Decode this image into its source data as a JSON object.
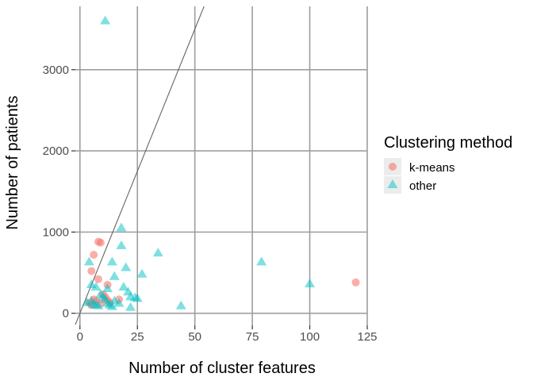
{
  "chart_data": {
    "type": "scatter",
    "title": "",
    "xlabel": "Number of cluster features",
    "ylabel": "Number of patients",
    "xlim": [
      -2,
      125
    ],
    "ylim": [
      -150,
      3780
    ],
    "x_ticks": [
      0,
      25,
      50,
      75,
      100,
      125
    ],
    "y_ticks": [
      0,
      1000,
      2000,
      3000
    ],
    "x_tick_labels": [
      "0",
      "25",
      "50",
      "75",
      "100",
      "125"
    ],
    "y_tick_labels": [
      "0",
      "1000",
      "2000",
      "3000"
    ],
    "grid": true,
    "reference_line": {
      "slope": 70,
      "intercept": 0,
      "color": "#666666"
    },
    "legend": {
      "title": "Clustering method",
      "position": "right",
      "entries": [
        {
          "label": "k-means",
          "shape": "circle",
          "color": "#F8766D"
        },
        {
          "label": "other",
          "shape": "triangle",
          "color": "#00BFC4"
        }
      ]
    },
    "series": [
      {
        "name": "k-means",
        "shape": "circle",
        "color": "#F8766D",
        "points": [
          [
            8,
            880
          ],
          [
            9,
            870
          ],
          [
            6,
            720
          ],
          [
            5,
            520
          ],
          [
            8,
            420
          ],
          [
            12,
            350
          ],
          [
            120,
            380
          ],
          [
            17,
            170
          ],
          [
            4,
            130
          ],
          [
            6,
            170
          ],
          [
            7,
            150
          ],
          [
            10,
            230
          ],
          [
            11,
            200
          ],
          [
            12,
            160
          ],
          [
            5,
            100
          ],
          [
            9,
            120
          ],
          [
            13,
            130
          ]
        ]
      },
      {
        "name": "other",
        "shape": "triangle",
        "color": "#00BFC4",
        "points": [
          [
            11,
            3600
          ],
          [
            18,
            1050
          ],
          [
            18,
            830
          ],
          [
            34,
            740
          ],
          [
            4,
            630
          ],
          [
            14,
            630
          ],
          [
            79,
            630
          ],
          [
            20,
            560
          ],
          [
            27,
            480
          ],
          [
            15,
            450
          ],
          [
            100,
            360
          ],
          [
            5,
            350
          ],
          [
            7,
            320
          ],
          [
            19,
            320
          ],
          [
            12,
            300
          ],
          [
            21,
            260
          ],
          [
            9,
            230
          ],
          [
            10,
            200
          ],
          [
            22,
            200
          ],
          [
            24,
            190
          ],
          [
            25,
            180
          ],
          [
            15,
            150
          ],
          [
            17,
            120
          ],
          [
            3,
            130
          ],
          [
            6,
            110
          ],
          [
            13,
            100
          ],
          [
            14,
            80
          ],
          [
            22,
            70
          ],
          [
            44,
            90
          ],
          [
            8,
            90
          ],
          [
            5,
            150
          ],
          [
            11,
            170
          ],
          [
            12,
            120
          ],
          [
            7,
            100
          ]
        ]
      }
    ]
  }
}
